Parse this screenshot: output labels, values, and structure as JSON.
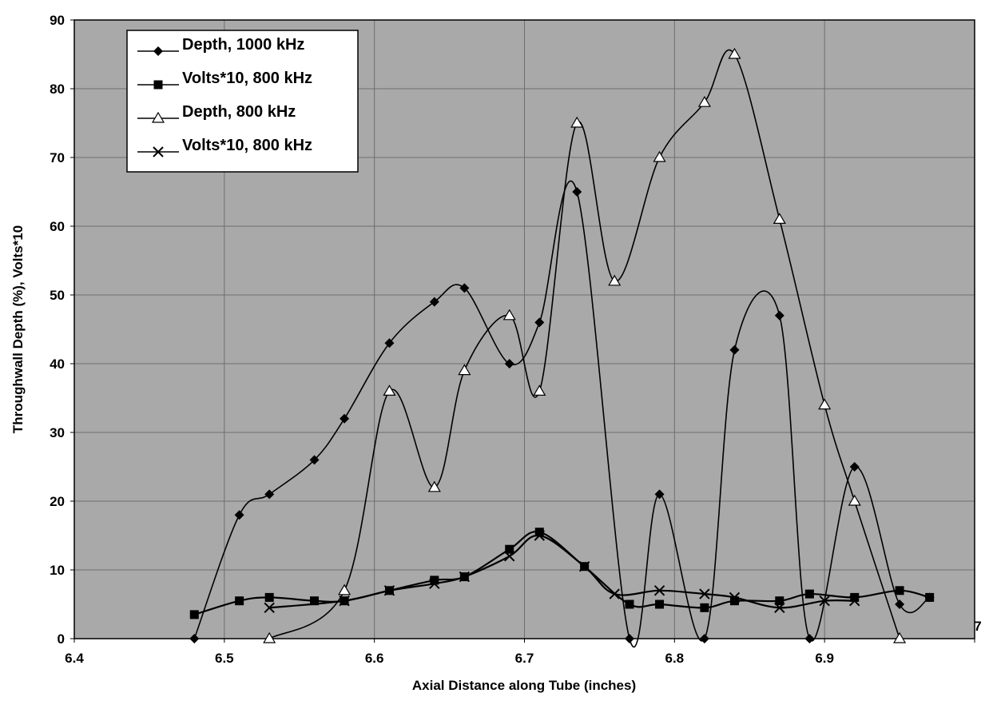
{
  "chart_data": {
    "type": "line",
    "xlabel": "Axial Distance along Tube (inches)",
    "ylabel": "Throughwall Depth (%), Volts*10",
    "xlim": [
      6.4,
      7
    ],
    "ylim": [
      0,
      90
    ],
    "x_ticks": [
      "6.4",
      "6.5",
      "6.6",
      "6.7",
      "6.8",
      "6.9",
      "7"
    ],
    "y_ticks": [
      "0",
      "10",
      "20",
      "30",
      "40",
      "50",
      "60",
      "70",
      "80",
      "90"
    ],
    "grid": true,
    "legend_position": "top-left",
    "colors": {
      "plot_background": "#a9a9a9",
      "grid": "#6e6e6e",
      "series": "#000000"
    },
    "series": [
      {
        "name": "Depth, 1000 kHz",
        "marker": "diamond",
        "points": [
          [
            6.48,
            0
          ],
          [
            6.51,
            18
          ],
          [
            6.53,
            21
          ],
          [
            6.56,
            26
          ],
          [
            6.58,
            32
          ],
          [
            6.61,
            43
          ],
          [
            6.64,
            49
          ],
          [
            6.66,
            51
          ],
          [
            6.69,
            40
          ],
          [
            6.71,
            46
          ],
          [
            6.735,
            65
          ],
          [
            6.77,
            0
          ],
          [
            6.79,
            21
          ],
          [
            6.82,
            0
          ],
          [
            6.84,
            42
          ],
          [
            6.87,
            47
          ],
          [
            6.89,
            0
          ],
          [
            6.92,
            25
          ],
          [
            6.95,
            5
          ],
          [
            6.97,
            6
          ]
        ]
      },
      {
        "name": "Volts*10, 800 kHz",
        "marker": "square",
        "points": [
          [
            6.48,
            3.5
          ],
          [
            6.51,
            5.5
          ],
          [
            6.53,
            6
          ],
          [
            6.56,
            5.5
          ],
          [
            6.58,
            5.5
          ],
          [
            6.61,
            7
          ],
          [
            6.64,
            8.5
          ],
          [
            6.66,
            9
          ],
          [
            6.69,
            13
          ],
          [
            6.71,
            15.5
          ],
          [
            6.74,
            10.5
          ],
          [
            6.77,
            5
          ],
          [
            6.79,
            5
          ],
          [
            6.82,
            4.5
          ],
          [
            6.84,
            5.5
          ],
          [
            6.87,
            5.5
          ],
          [
            6.89,
            6.5
          ],
          [
            6.92,
            6
          ],
          [
            6.95,
            7
          ],
          [
            6.97,
            6
          ]
        ]
      },
      {
        "name": "Depth, 800 kHz",
        "marker": "triangle",
        "points": [
          [
            6.53,
            0
          ],
          [
            6.58,
            7
          ],
          [
            6.61,
            36
          ],
          [
            6.64,
            22
          ],
          [
            6.66,
            39
          ],
          [
            6.69,
            47
          ],
          [
            6.71,
            36
          ],
          [
            6.735,
            75
          ],
          [
            6.76,
            52
          ],
          [
            6.79,
            70
          ],
          [
            6.82,
            78
          ],
          [
            6.84,
            85
          ],
          [
            6.87,
            61
          ],
          [
            6.9,
            34
          ],
          [
            6.92,
            20
          ],
          [
            6.95,
            0
          ]
        ]
      },
      {
        "name": "Volts*10, 800 kHz",
        "marker": "x",
        "points": [
          [
            6.53,
            4.5
          ],
          [
            6.58,
            5.5
          ],
          [
            6.61,
            7
          ],
          [
            6.64,
            8
          ],
          [
            6.66,
            9
          ],
          [
            6.69,
            12
          ],
          [
            6.71,
            15
          ],
          [
            6.74,
            10.5
          ],
          [
            6.76,
            6.5
          ],
          [
            6.79,
            7
          ],
          [
            6.82,
            6.5
          ],
          [
            6.84,
            6
          ],
          [
            6.87,
            4.5
          ],
          [
            6.9,
            5.5
          ],
          [
            6.92,
            5.5
          ]
        ]
      }
    ]
  }
}
